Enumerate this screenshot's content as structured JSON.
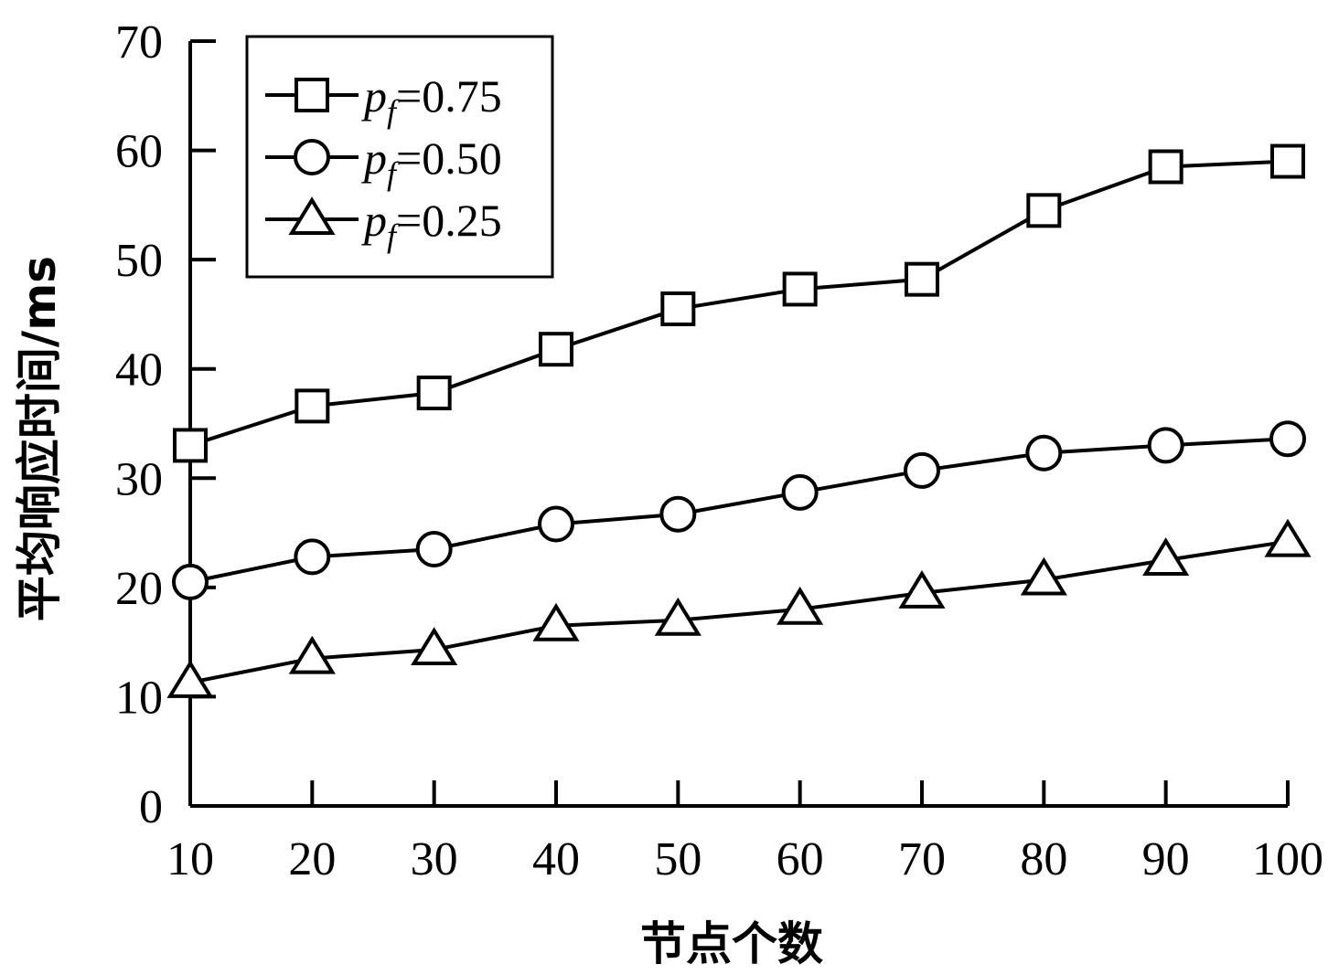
{
  "chart_data": {
    "type": "line",
    "xlabel": "节点个数",
    "ylabel": "平均响应时间/ms",
    "x": [
      10,
      20,
      30,
      40,
      50,
      60,
      70,
      80,
      90,
      100
    ],
    "xlim": [
      10,
      100
    ],
    "ylim": [
      0,
      70
    ],
    "x_ticks": [
      "10",
      "20",
      "30",
      "40",
      "50",
      "60",
      "70",
      "80",
      "90",
      "100"
    ],
    "y_ticks": [
      "0",
      "10",
      "20",
      "30",
      "40",
      "50",
      "60",
      "70"
    ],
    "grid": false,
    "legend_position": "top-left",
    "series": [
      {
        "name": "pf=0.75",
        "legend_symbol": "p",
        "legend_sub": "f",
        "legend_value": "=0.75",
        "marker": "square",
        "values": [
          33.0,
          36.6,
          37.8,
          41.8,
          45.5,
          47.3,
          48.2,
          54.5,
          58.5,
          59.0
        ]
      },
      {
        "name": "pf=0.50",
        "legend_symbol": "p",
        "legend_sub": "f",
        "legend_value": "=0.50",
        "marker": "circle",
        "values": [
          20.5,
          22.8,
          23.5,
          25.8,
          26.7,
          28.7,
          30.7,
          32.3,
          33.0,
          33.6
        ]
      },
      {
        "name": "pf=0.25",
        "legend_symbol": "p",
        "legend_sub": "f",
        "legend_value": "=0.25",
        "marker": "triangle",
        "values": [
          11.3,
          13.5,
          14.3,
          16.5,
          17.0,
          18.0,
          19.5,
          20.7,
          22.5,
          24.2
        ]
      }
    ]
  }
}
